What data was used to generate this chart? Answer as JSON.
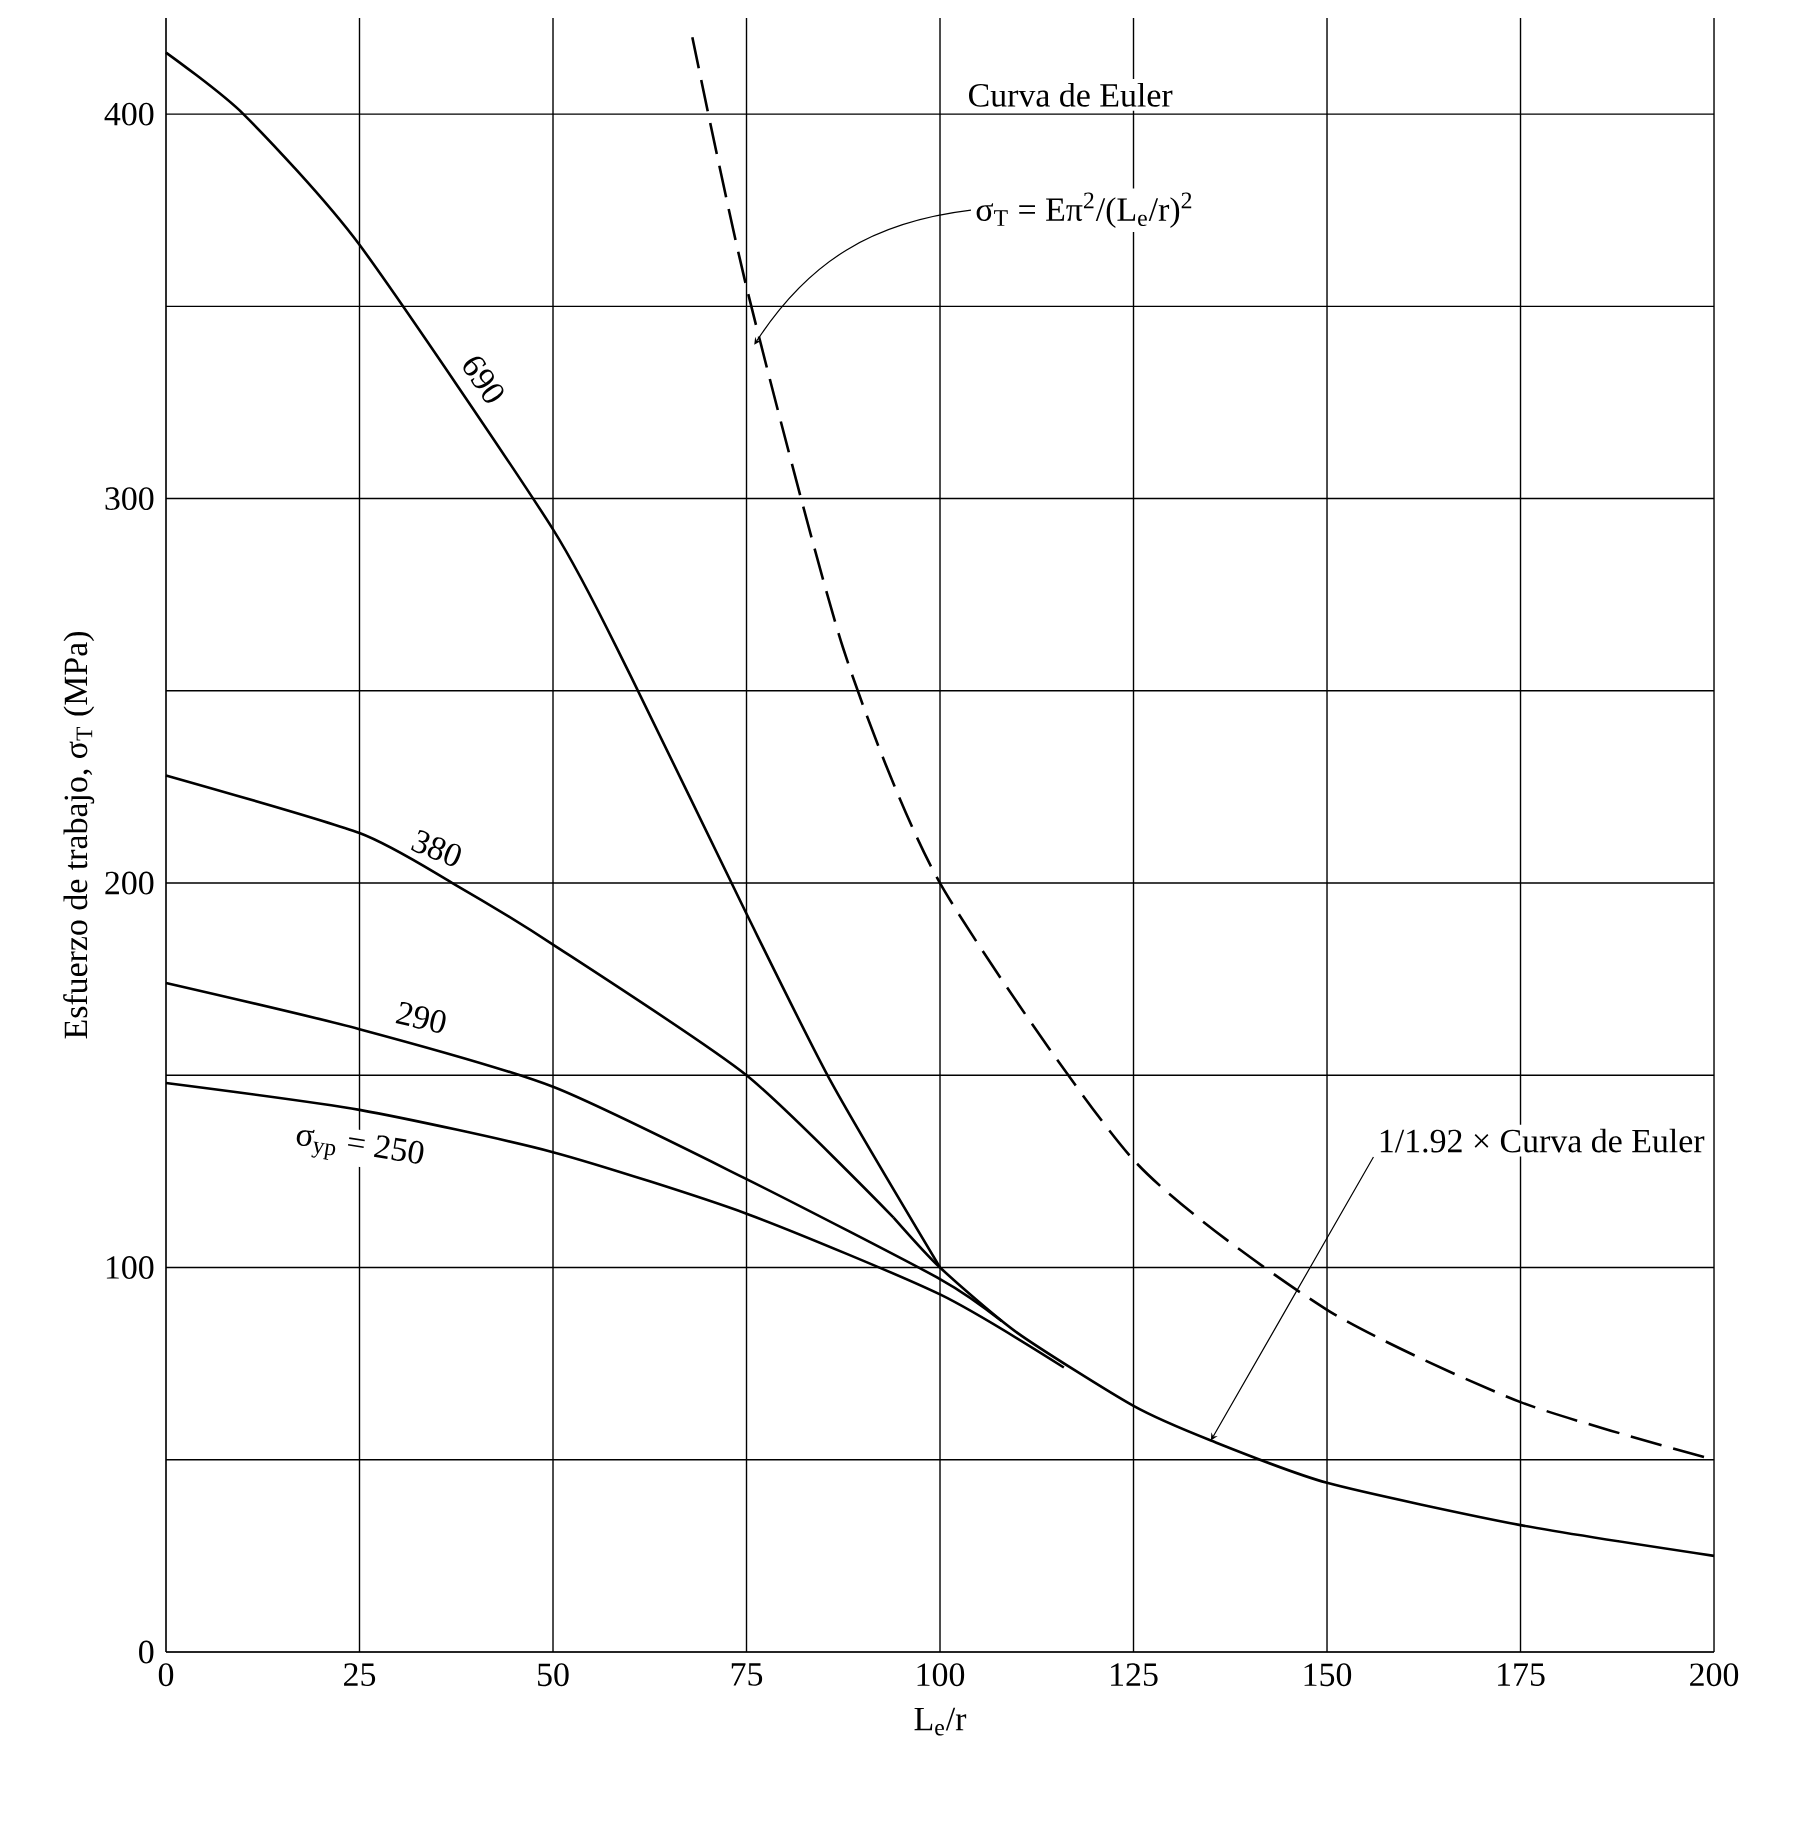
{
  "chart_data": {
    "type": "line",
    "xlabel": "L$_{e}$/r",
    "ylabel": "Esfuerzo de trabajo, σ$_{T}$ (MPa)",
    "xlim": [
      0,
      200
    ],
    "ylim": [
      0,
      425
    ],
    "xticks": [
      0,
      25,
      50,
      75,
      100,
      125,
      150,
      175,
      200
    ],
    "yticks": [
      0,
      {
        "value": 50,
        "label": null
      },
      100,
      {
        "value": 150,
        "label": null
      },
      200,
      {
        "value": 250,
        "label": null
      },
      300,
      {
        "value": 350,
        "label": null
      },
      400
    ],
    "grid": true,
    "marker": "none",
    "series": [
      {
        "name": "690",
        "color": "#000000",
        "line_style": "solid",
        "x": [
          0,
          10,
          25,
          50,
          60,
          75,
          86,
          100
        ],
        "values": [
          416,
          400,
          366,
          292,
          254,
          192,
          148,
          100
        ]
      },
      {
        "name": "380",
        "color": "#000000",
        "line_style": "solid",
        "x": [
          0,
          25,
          37,
          50,
          75,
          94
        ],
        "values": [
          228,
          213,
          200,
          184,
          150,
          113
        ]
      },
      {
        "name": "290",
        "color": "#000000",
        "line_style": "solid",
        "x": [
          0,
          25,
          50,
          75,
          100,
          108
        ],
        "values": [
          174,
          162,
          147,
          123,
          97,
          86
        ]
      },
      {
        "name": "σ$_{yp}$ = 250",
        "color": "#000000",
        "line_style": "solid",
        "x": [
          0,
          25,
          50,
          75,
          100,
          116
        ],
        "values": [
          148,
          141,
          130,
          114,
          93,
          74
        ]
      },
      {
        "color": "#000000",
        "line_style": "dashed",
        "x": [
          68,
          75,
          87.5,
          100,
          125,
          150,
          175,
          200
        ],
        "values": [
          420,
          355,
          261,
          200,
          128,
          89,
          65,
          50
        ]
      },
      {
        "color": "#000000",
        "line_style": "solid",
        "x": [
          94,
          100,
          110,
          125,
          135,
          150,
          175,
          200
        ],
        "values": [
          113,
          100,
          83,
          64,
          55,
          44,
          33,
          25
        ]
      }
    ],
    "annotations": [
      {
        "text": "σ$_{T}$ = Eπ$^{2}$/(L$_{e}$/r)$^{2}$",
        "x": 76,
        "y": 340
      },
      "Curva de Euler",
      {
        "text": "1/1.92 × Curva de Euler",
        "x": 135,
        "y": 55
      }
    ]
  }
}
